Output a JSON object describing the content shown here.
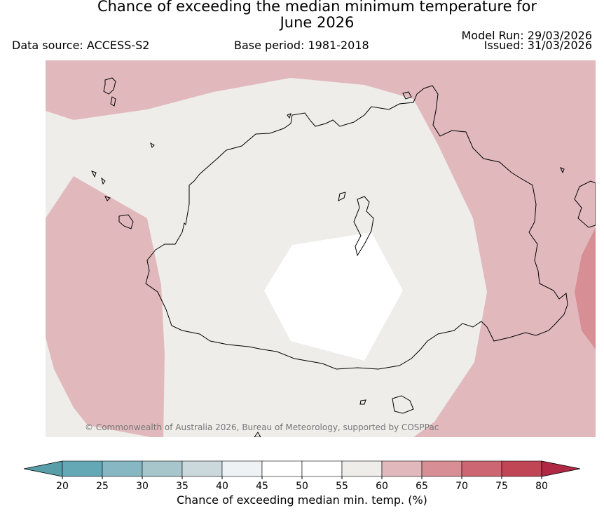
{
  "title_line1": "Chance of exceeding the median minimum temperature for",
  "title_line2": "June 2026",
  "data_source": "Data source: ACCESS-S2",
  "base_period": "Base period: 1981-2018",
  "model_run": "Model Run: 29/03/2026",
  "issued": "Issued: 31/03/2026",
  "copyright": "© Commonwealth of Australia 2026, Bureau of Meteorology, supported by COSPPac",
  "colorbar": {
    "label": "Chance of exceeding median min. temp. (%)",
    "ticks": [
      20,
      25,
      30,
      35,
      40,
      45,
      50,
      55,
      60,
      65,
      70,
      75,
      80
    ],
    "colors": [
      "#64a8b6",
      "#86b7c2",
      "#a6c6cb",
      "#cbd8dc",
      "#eef2f4",
      "#ffffff",
      "#ffffff",
      "#efedea",
      "#e1b9bd",
      "#d78e95",
      "#cb6672",
      "#c04555"
    ],
    "under_color": "#579ea9",
    "over_color": "#b02843"
  },
  "map_colors": {
    "near_normal": "#efedea",
    "above_60_65": "#e1b9bd",
    "above_65_70": "#d78e95",
    "center_45_55": "#ffffff",
    "coast": "#000000"
  }
}
